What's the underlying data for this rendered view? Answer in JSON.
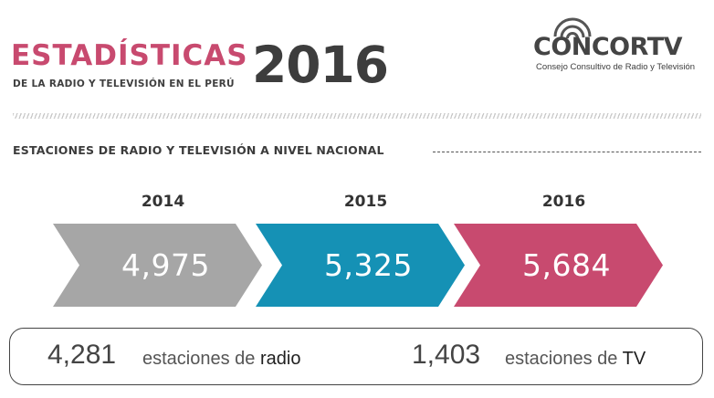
{
  "header": {
    "title": "ESTADÍSTICAS",
    "subtitle": "DE LA RADIO Y TELEVISIÓN EN EL PERÚ",
    "year": "2016"
  },
  "logo": {
    "name": "CONCORTV",
    "tagline": "Consejo Consultivo de Radio y Televisión",
    "icon": "broadcast-waves-icon"
  },
  "section": {
    "title": "ESTACIONES DE RADIO Y TELEVISIÓN A NIVEL NACIONAL"
  },
  "chart_data": {
    "type": "bar",
    "title": "ESTACIONES DE RADIO Y TELEVISIÓN A NIVEL NACIONAL",
    "categories": [
      "2014",
      "2015",
      "2016"
    ],
    "values": [
      4975,
      5325,
      5684
    ],
    "value_labels": [
      "4,975",
      "5,325",
      "5,684"
    ],
    "colors": [
      "#a6a6a6",
      "#1591b5",
      "#c84a6f"
    ],
    "grid": false
  },
  "summary": {
    "radio_count": "4,281",
    "radio_label_prefix": "estaciones de",
    "radio_label_emphasis": "radio",
    "tv_count": "1,403",
    "tv_label_prefix": "estaciones de",
    "tv_label_emphasis": "TV"
  },
  "colors": {
    "accent_pink": "#c84a6f",
    "accent_blue": "#1591b5",
    "gray": "#a6a6a6",
    "text_dark": "#3d3d3d"
  }
}
